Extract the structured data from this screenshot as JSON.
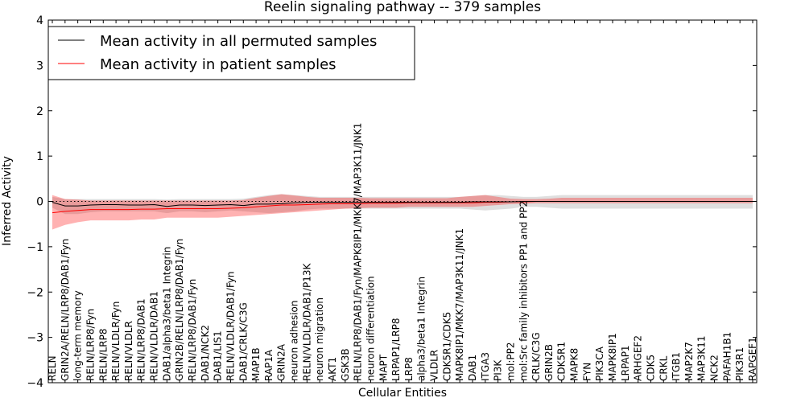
{
  "chart_data": {
    "type": "line",
    "title": "Reelin signaling pathway -- 379 samples",
    "xlabel": "Cellular Entities",
    "ylabel": "Inferred Activity",
    "ylim": [
      -4,
      4
    ],
    "yticks": [
      -4,
      -3,
      -2,
      -1,
      0,
      1,
      2,
      3,
      4
    ],
    "ytick_labels": [
      "−4",
      "−3",
      "−2",
      "−1",
      "0",
      "1",
      "2",
      "3",
      "4"
    ],
    "grid": false,
    "legend_position": "top-left",
    "categories": [
      "RELN",
      "GRIN2A/RELN/LRP8/DAB1/Fyn",
      "long-term memory",
      "RELN/LRP8/Fyn",
      "RELN/LRP8",
      "RELN/VLDLR/Fyn",
      "RELN/VLDLR",
      "RELN/LRP8/DAB1",
      "RELN/VLDLR/DAB1",
      "DAB1/alpha3/beta1 Integrin",
      "GRIN2B/RELN/LRP8/DAB1/Fyn",
      "RELN/LRP8/DAB1/Fyn",
      "DAB1/NCK2",
      "DAB1/LIS1",
      "RELN/VLDLR/DAB1/Fyn",
      "DAB1/CRLK/C3G",
      "MAP1B",
      "RAP1A",
      "GRIN2A",
      "neuron adhesion",
      "RELN/VLDLR/DAB1/P13K",
      "neuron migration",
      "AKT1",
      "GSK3B",
      "RELN/LRP8/DAB1/Fyn/MAPK8IP1/MKK7/MAP3K11/JNK1",
      "neuron differentiation",
      "MAPT",
      "LRPAP1/LRP8",
      "LRP8",
      "alpha3/beta1 Integrin",
      "VLDLR",
      "CDK5R1/CDK5",
      "MAPK8IP1/MKK7/MAP3K11/JNK1",
      "DAB1",
      "ITGA3",
      "PI3K",
      "mol:PP2",
      "mol:Src family inhibitors PP1 and PP2",
      "CRLK/C3G",
      "GRIN2B",
      "CDK5R1",
      "MAPK8",
      "FYN",
      "PIK3CA",
      "MAPK8IP1",
      "LRPAP1",
      "ARHGEF2",
      "CDK5",
      "CRKL",
      "ITGB1",
      "MAP2K7",
      "MAP3K11",
      "NCK2",
      "PAFAH1B1",
      "PIK3R1",
      "RAPGEF1"
    ],
    "series": [
      {
        "name": "Mean activity in all permuted samples",
        "color": "#000000",
        "values": [
          -0.02,
          -0.1,
          -0.1,
          -0.08,
          -0.07,
          -0.07,
          -0.08,
          -0.08,
          -0.07,
          -0.11,
          -0.08,
          -0.08,
          -0.09,
          -0.08,
          -0.07,
          -0.09,
          -0.06,
          -0.06,
          -0.05,
          -0.03,
          -0.02,
          -0.02,
          -0.02,
          -0.02,
          -0.02,
          -0.02,
          -0.02,
          -0.02,
          -0.02,
          -0.02,
          -0.02,
          -0.02,
          -0.02,
          -0.01,
          -0.01,
          -0.01,
          -0.01,
          0.0,
          0.0,
          0.0,
          0.0,
          0.0,
          0.0,
          0.0,
          0.0,
          0.0,
          0.0,
          0.0,
          0.0,
          0.0,
          0.0,
          0.0,
          0.0,
          0.0,
          0.0,
          0.0
        ],
        "band_upper": [
          0.1,
          0.05,
          0.05,
          0.05,
          0.05,
          0.05,
          0.05,
          0.05,
          0.05,
          0.04,
          0.05,
          0.05,
          0.05,
          0.05,
          0.05,
          0.06,
          0.1,
          0.14,
          0.16,
          0.14,
          0.12,
          0.1,
          0.1,
          0.1,
          0.1,
          0.1,
          0.1,
          0.1,
          0.1,
          0.1,
          0.1,
          0.1,
          0.1,
          0.12,
          0.14,
          0.14,
          0.12,
          0.1,
          0.1,
          0.12,
          0.14,
          0.14,
          0.14,
          0.14,
          0.14,
          0.14,
          0.14,
          0.14,
          0.14,
          0.14,
          0.14,
          0.14,
          0.14,
          0.14,
          0.14,
          0.14
        ],
        "band_lower": [
          -0.14,
          -0.28,
          -0.28,
          -0.24,
          -0.22,
          -0.22,
          -0.22,
          -0.22,
          -0.22,
          -0.26,
          -0.22,
          -0.22,
          -0.24,
          -0.22,
          -0.2,
          -0.22,
          -0.24,
          -0.26,
          -0.24,
          -0.22,
          -0.18,
          -0.16,
          -0.16,
          -0.16,
          -0.16,
          -0.16,
          -0.16,
          -0.16,
          -0.16,
          -0.16,
          -0.16,
          -0.16,
          -0.16,
          -0.18,
          -0.2,
          -0.18,
          -0.16,
          -0.12,
          -0.12,
          -0.14,
          -0.16,
          -0.16,
          -0.16,
          -0.16,
          -0.16,
          -0.16,
          -0.16,
          -0.16,
          -0.16,
          -0.16,
          -0.16,
          -0.16,
          -0.16,
          -0.16,
          -0.16,
          -0.16
        ]
      },
      {
        "name": "Mean activity in patient samples",
        "color": "#ff0000",
        "values": [
          -0.25,
          -0.22,
          -0.2,
          -0.18,
          -0.18,
          -0.18,
          -0.18,
          -0.17,
          -0.17,
          -0.16,
          -0.16,
          -0.16,
          -0.16,
          -0.16,
          -0.15,
          -0.14,
          -0.12,
          -0.1,
          -0.08,
          -0.08,
          -0.07,
          -0.06,
          -0.05,
          -0.05,
          -0.05,
          -0.04,
          -0.04,
          -0.04,
          -0.03,
          -0.03,
          -0.03,
          -0.03,
          -0.03,
          -0.03,
          -0.02,
          -0.02,
          -0.01,
          -0.01,
          0.0,
          0.0,
          0.0,
          0.0,
          0.0,
          0.0,
          0.0,
          0.0,
          0.0,
          0.0,
          0.0,
          0.0,
          0.0,
          0.0,
          0.0,
          0.0,
          0.0,
          0.0
        ],
        "band_upper": [
          0.14,
          0.05,
          0.04,
          0.02,
          0.02,
          0.02,
          0.02,
          0.02,
          0.02,
          0.02,
          0.02,
          0.02,
          0.02,
          0.02,
          0.02,
          0.03,
          0.08,
          0.12,
          0.16,
          0.13,
          0.1,
          0.08,
          0.08,
          0.08,
          0.08,
          0.07,
          0.07,
          0.07,
          0.07,
          0.07,
          0.07,
          0.07,
          0.1,
          0.12,
          0.14,
          0.1,
          0.06,
          0.05,
          0.05,
          0.06,
          0.08,
          0.08,
          0.08,
          0.08,
          0.08,
          0.08,
          0.08,
          0.08,
          0.08,
          0.08,
          0.08,
          0.08,
          0.08,
          0.08,
          0.08,
          0.08
        ],
        "band_lower": [
          -0.62,
          -0.52,
          -0.46,
          -0.42,
          -0.42,
          -0.42,
          -0.42,
          -0.4,
          -0.4,
          -0.36,
          -0.36,
          -0.36,
          -0.36,
          -0.36,
          -0.34,
          -0.32,
          -0.3,
          -0.28,
          -0.26,
          -0.24,
          -0.22,
          -0.2,
          -0.18,
          -0.16,
          -0.15,
          -0.14,
          -0.14,
          -0.14,
          -0.12,
          -0.12,
          -0.12,
          -0.12,
          -0.12,
          -0.12,
          -0.1,
          -0.08,
          -0.06,
          -0.05,
          -0.04,
          -0.04,
          -0.04,
          -0.04,
          -0.04,
          -0.04,
          -0.04,
          -0.04,
          -0.04,
          -0.04,
          -0.04,
          -0.04,
          -0.04,
          -0.04,
          -0.04,
          -0.04,
          -0.04,
          -0.04
        ]
      }
    ]
  }
}
